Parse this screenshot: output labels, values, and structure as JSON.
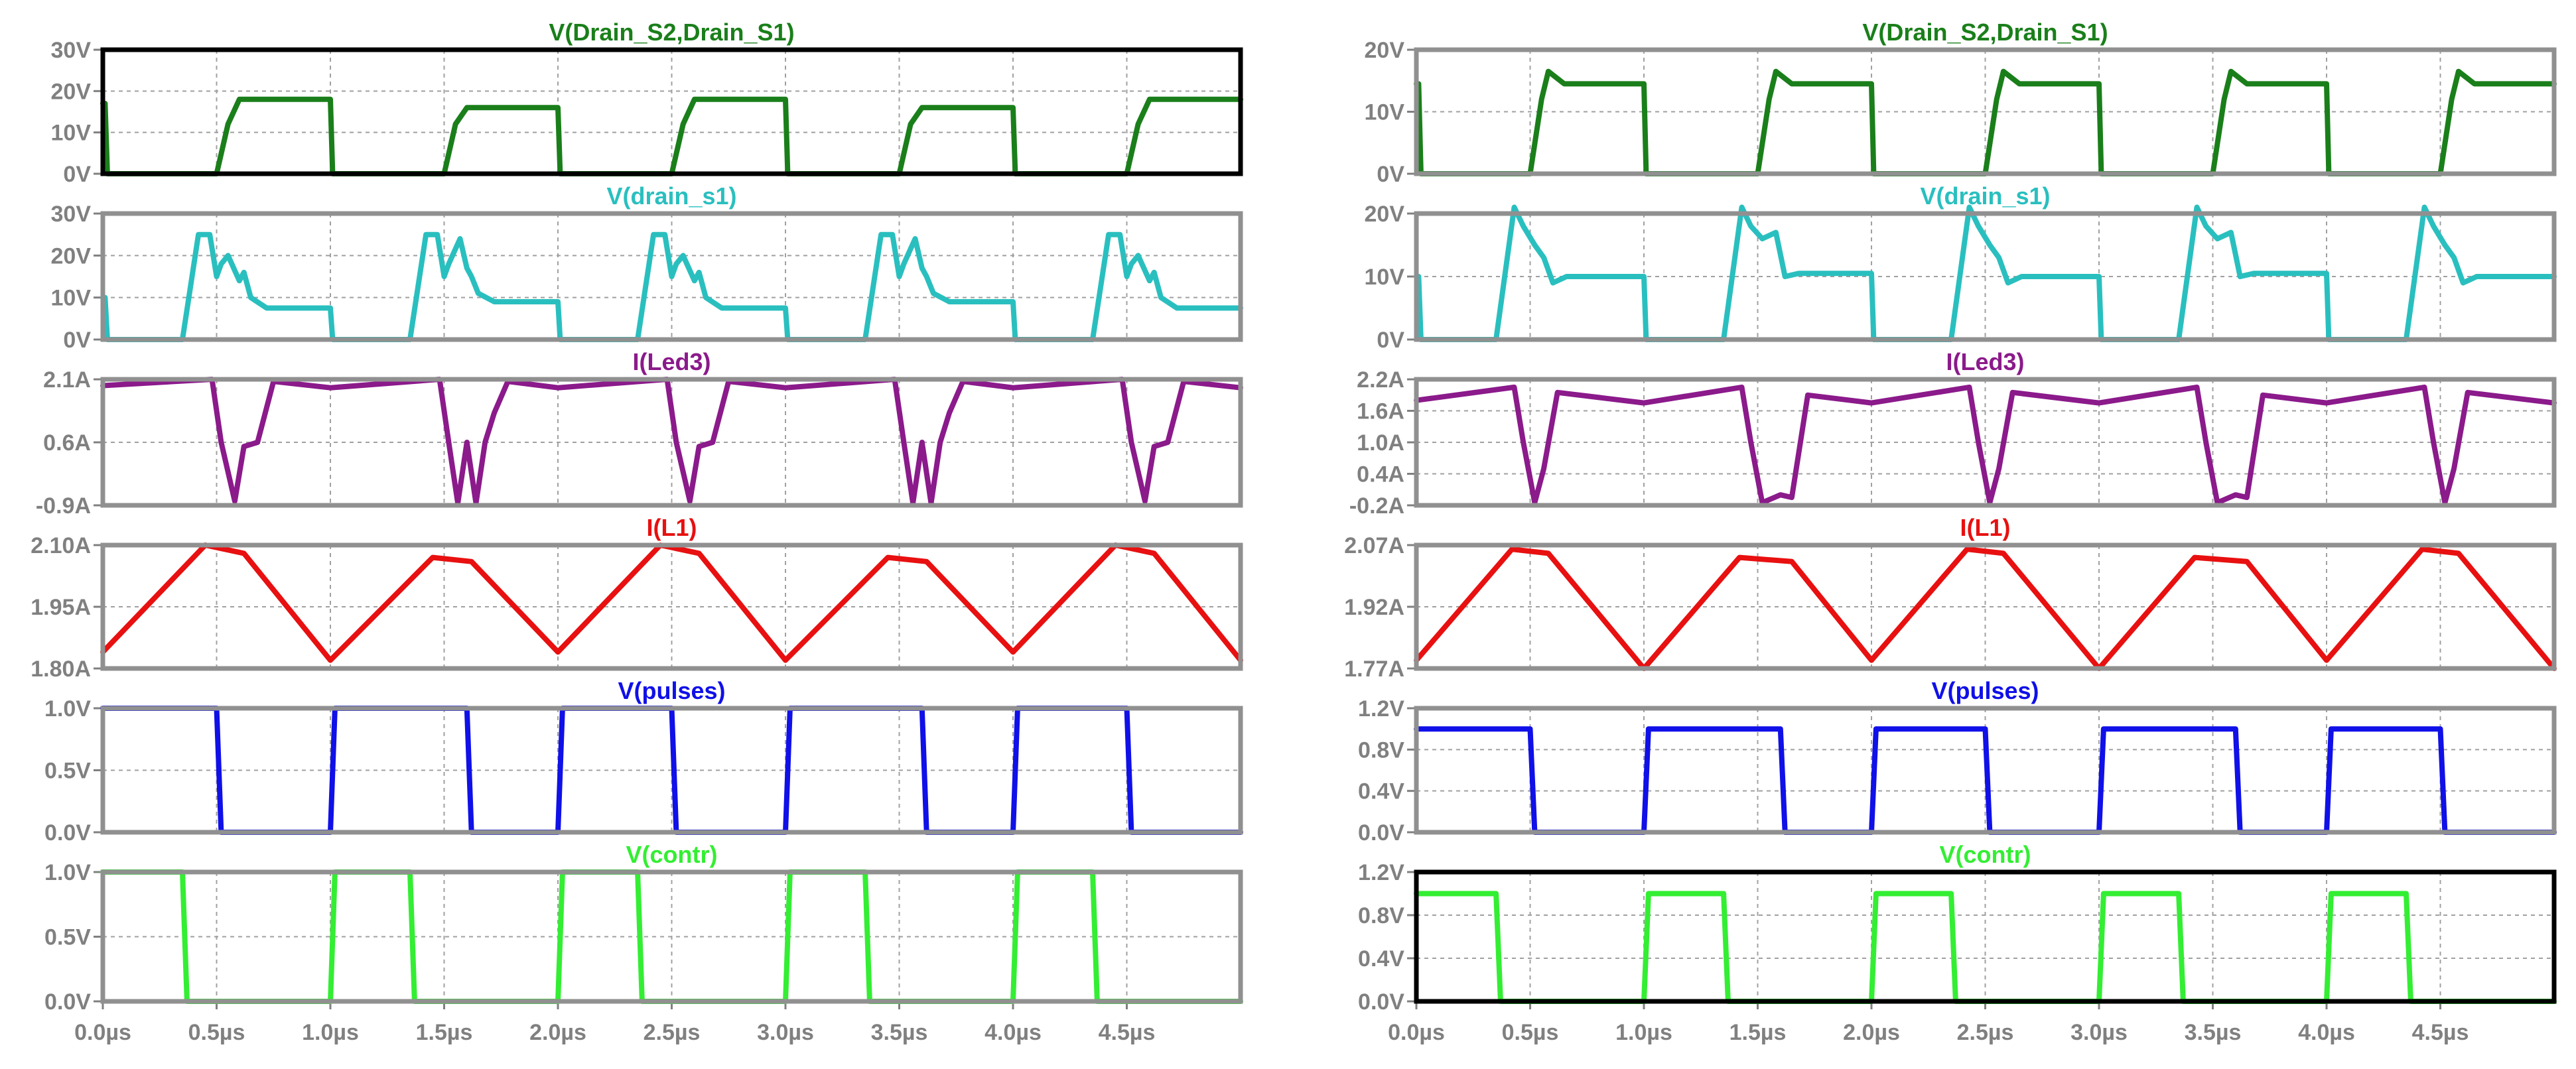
{
  "chart_data": [
    {
      "type": "line",
      "title": "V(Drain_S2,Drain_S1)",
      "color": "#1a7f1a",
      "frame": "#000000",
      "x_range": [
        0,
        5
      ],
      "ylim": [
        0,
        30
      ],
      "y_ticks": [
        "0V",
        "10V",
        "20V",
        "30V"
      ],
      "x_ticks": [],
      "series": [
        {
          "x": [
            0,
            0.01,
            0.02,
            0.5,
            0.55,
            0.6,
            1.0,
            1.01,
            1.5,
            1.55,
            1.6,
            2.0,
            2.01,
            2.5,
            2.55,
            2.6,
            3.0,
            3.01,
            3.5,
            3.55,
            3.6,
            4.0,
            4.01,
            4.5,
            4.55,
            4.6,
            5.0
          ],
          "y": [
            17,
            17,
            0,
            0,
            12,
            18,
            18,
            0,
            0,
            12,
            16,
            16,
            0,
            0,
            12,
            18,
            18,
            0,
            0,
            12,
            16,
            16,
            0,
            0,
            12,
            18,
            18
          ]
        }
      ]
    },
    {
      "type": "line",
      "title": "V(drain_s1)",
      "color": "#2abfbf",
      "frame": "#909090",
      "x_range": [
        0,
        5
      ],
      "ylim": [
        0,
        30
      ],
      "y_ticks": [
        "0V",
        "10V",
        "20V",
        "30V"
      ],
      "x_ticks": [],
      "series": [
        {
          "x": [
            0,
            0.01,
            0.02,
            0.35,
            0.42,
            0.47,
            0.5,
            0.52,
            0.55,
            0.6,
            0.62,
            0.65,
            0.72,
            1.0,
            1.01,
            1.35,
            1.42,
            1.47,
            1.5,
            1.52,
            1.57,
            1.6,
            1.62,
            1.65,
            1.72,
            2.0,
            2.01,
            2.35,
            2.42,
            2.47,
            2.5,
            2.52,
            2.55,
            2.6,
            2.62,
            2.65,
            2.72,
            3.0,
            3.01,
            3.35,
            3.42,
            3.47,
            3.5,
            3.52,
            3.57,
            3.6,
            3.62,
            3.65,
            3.72,
            4.0,
            4.01,
            4.35,
            4.42,
            4.47,
            4.5,
            4.52,
            4.55,
            4.6,
            4.62,
            4.65,
            4.72,
            5.0
          ],
          "y": [
            10,
            10,
            0,
            0,
            25,
            25,
            15,
            18,
            20,
            14,
            16,
            10,
            7.5,
            7.5,
            0,
            0,
            25,
            25,
            15,
            18,
            24,
            17,
            15,
            11,
            9,
            9,
            0,
            0,
            25,
            25,
            15,
            18,
            20,
            14,
            16,
            10,
            7.5,
            7.5,
            0,
            0,
            25,
            25,
            15,
            18,
            24,
            17,
            15,
            11,
            9,
            9,
            0,
            0,
            25,
            25,
            15,
            18,
            20,
            14,
            16,
            10,
            7.5,
            7.5
          ]
        }
      ]
    },
    {
      "type": "line",
      "title": "I(Led3)",
      "color": "#8b1a8b",
      "frame": "#909090",
      "x_range": [
        0,
        5
      ],
      "ylim": [
        -0.9,
        2.1
      ],
      "y_ticks": [
        "-0.9A",
        "0.6A",
        "2.1A"
      ],
      "x_ticks": [],
      "series": [
        {
          "x": [
            0,
            0.48,
            0.52,
            0.58,
            0.62,
            0.68,
            0.75,
            1.0,
            1.48,
            1.52,
            1.56,
            1.6,
            1.64,
            1.68,
            1.72,
            1.78,
            2.0,
            2.48,
            2.52,
            2.58,
            2.62,
            2.68,
            2.75,
            3.0,
            3.48,
            3.52,
            3.56,
            3.6,
            3.64,
            3.68,
            3.72,
            3.78,
            4.0,
            4.48,
            4.52,
            4.58,
            4.62,
            4.68,
            4.75,
            5.0
          ],
          "y": [
            1.95,
            2.1,
            0.6,
            -0.8,
            0.5,
            0.6,
            2.05,
            1.9,
            2.1,
            0.6,
            -0.85,
            0.6,
            -0.85,
            0.6,
            1.3,
            2.05,
            1.9,
            2.1,
            0.6,
            -0.8,
            0.5,
            0.6,
            2.05,
            1.9,
            2.1,
            0.6,
            -0.85,
            0.6,
            -0.85,
            0.6,
            1.3,
            2.05,
            1.9,
            2.1,
            0.6,
            -0.8,
            0.5,
            0.6,
            2.05,
            1.9
          ]
        }
      ]
    },
    {
      "type": "line",
      "title": "I(L1)",
      "color": "#e81010",
      "frame": "#909090",
      "x_range": [
        0,
        5
      ],
      "ylim": [
        1.8,
        2.1
      ],
      "y_ticks": [
        "1.80A",
        "1.95A",
        "2.10A"
      ],
      "x_ticks": [],
      "series": [
        {
          "x": [
            0,
            0.45,
            0.62,
            1.0,
            1.45,
            1.62,
            2.0,
            2.45,
            2.62,
            3.0,
            3.45,
            3.62,
            4.0,
            4.45,
            4.62,
            5.0
          ],
          "y": [
            1.84,
            2.1,
            2.08,
            1.82,
            2.07,
            2.06,
            1.84,
            2.1,
            2.08,
            1.82,
            2.07,
            2.06,
            1.84,
            2.1,
            2.08,
            1.82
          ]
        }
      ]
    },
    {
      "type": "line",
      "title": "V(pulses)",
      "color": "#1010e8",
      "frame": "#909090",
      "x_range": [
        0,
        5
      ],
      "ylim": [
        0,
        1.0
      ],
      "y_ticks": [
        "0.0V",
        "0.5V",
        "1.0V"
      ],
      "x_ticks": [],
      "series": [
        {
          "x": [
            0,
            0.5,
            0.52,
            1.0,
            1.02,
            1.6,
            1.62,
            2.0,
            2.02,
            2.5,
            2.52,
            3.0,
            3.02,
            3.6,
            3.62,
            4.0,
            4.02,
            4.5,
            4.52,
            5.0
          ],
          "y": [
            1,
            1,
            0,
            0,
            1,
            1,
            0,
            0,
            1,
            1,
            0,
            0,
            1,
            1,
            0,
            0,
            1,
            1,
            0,
            0
          ]
        }
      ]
    },
    {
      "type": "line",
      "title": "V(contr)",
      "color": "#33ee33",
      "frame": "#909090",
      "x_range": [
        0,
        5
      ],
      "ylim": [
        0,
        1.0
      ],
      "y_ticks": [
        "0.0V",
        "0.5V",
        "1.0V"
      ],
      "x_ticks": [
        "0.0µs",
        "0.5µs",
        "1.0µs",
        "1.5µs",
        "2.0µs",
        "2.5µs",
        "3.0µs",
        "3.5µs",
        "4.0µs",
        "4.5µs"
      ],
      "series": [
        {
          "x": [
            0,
            0.35,
            0.37,
            1.0,
            1.02,
            1.35,
            1.37,
            2.0,
            2.02,
            2.35,
            2.37,
            3.0,
            3.02,
            3.35,
            3.37,
            4.0,
            4.02,
            4.35,
            4.37,
            5.0
          ],
          "y": [
            1,
            1,
            0,
            0,
            1,
            1,
            0,
            0,
            1,
            1,
            0,
            0,
            1,
            1,
            0,
            0,
            1,
            1,
            0,
            0
          ]
        }
      ]
    },
    {
      "type": "line",
      "title": "V(Drain_S2,Drain_S1)",
      "color": "#1a7f1a",
      "frame": "#909090",
      "x_range": [
        0,
        5
      ],
      "ylim": [
        0,
        20
      ],
      "y_ticks": [
        "0V",
        "10V",
        "20V"
      ],
      "x_ticks": [],
      "series": [
        {
          "x": [
            0,
            0.01,
            0.02,
            0.5,
            0.55,
            0.58,
            0.65,
            1.0,
            1.01,
            1.5,
            1.55,
            1.58,
            1.65,
            2.0,
            2.01,
            2.5,
            2.55,
            2.58,
            2.65,
            3.0,
            3.01,
            3.5,
            3.55,
            3.58,
            3.65,
            4.0,
            4.01,
            4.5,
            4.55,
            4.58,
            4.65,
            5.0
          ],
          "y": [
            14.5,
            14.5,
            0,
            0,
            12,
            16.5,
            14.5,
            14.5,
            0,
            0,
            12,
            16.5,
            14.5,
            14.5,
            0,
            0,
            12,
            16.5,
            14.5,
            14.5,
            0,
            0,
            12,
            16.5,
            14.5,
            14.5,
            0,
            0,
            12,
            16.5,
            14.5,
            14.5
          ]
        }
      ]
    },
    {
      "type": "line",
      "title": "V(drain_s1)",
      "color": "#2abfbf",
      "frame": "#909090",
      "x_range": [
        0,
        5
      ],
      "ylim": [
        0,
        20
      ],
      "y_ticks": [
        "0V",
        "10V",
        "20V"
      ],
      "x_ticks": [],
      "series": [
        {
          "x": [
            0,
            0.01,
            0.02,
            0.35,
            0.43,
            0.47,
            0.52,
            0.56,
            0.6,
            0.66,
            1.0,
            1.01,
            1.35,
            1.43,
            1.47,
            1.52,
            1.58,
            1.62,
            1.68,
            2.0,
            2.01,
            2.35,
            2.43,
            2.47,
            2.52,
            2.56,
            2.6,
            2.66,
            3.0,
            3.01,
            3.35,
            3.43,
            3.47,
            3.52,
            3.58,
            3.62,
            3.68,
            4.0,
            4.01,
            4.35,
            4.43,
            4.47,
            4.52,
            4.56,
            4.6,
            4.66,
            5.0
          ],
          "y": [
            10,
            10,
            0,
            0,
            21,
            18,
            15,
            13,
            9,
            10,
            10,
            0,
            0,
            21,
            18,
            16,
            17,
            10,
            10.5,
            10.5,
            0,
            0,
            21,
            18,
            15,
            13,
            9,
            10,
            10,
            0,
            0,
            21,
            18,
            16,
            17,
            10,
            10.5,
            10.5,
            0,
            0,
            21,
            18,
            15,
            13,
            9,
            10,
            10
          ]
        }
      ]
    },
    {
      "type": "line",
      "title": "I(Led3)",
      "color": "#8b1a8b",
      "frame": "#909090",
      "x_range": [
        0,
        5
      ],
      "ylim": [
        -0.2,
        2.2
      ],
      "y_ticks": [
        "-0.2A",
        "0.4A",
        "1.0A",
        "1.6A",
        "2.2A"
      ],
      "x_ticks": [],
      "series": [
        {
          "x": [
            0,
            0.43,
            0.47,
            0.52,
            0.56,
            0.62,
            1.0,
            1.43,
            1.47,
            1.52,
            1.6,
            1.65,
            1.72,
            2.0,
            2.43,
            2.47,
            2.52,
            2.56,
            2.62,
            3.0,
            3.43,
            3.47,
            3.52,
            3.6,
            3.65,
            3.72,
            4.0,
            4.43,
            4.47,
            4.52,
            4.56,
            4.62,
            5.0
          ],
          "y": [
            1.8,
            2.05,
            1.0,
            -0.15,
            0.5,
            1.95,
            1.75,
            2.05,
            1.0,
            -0.15,
            0.0,
            -0.05,
            1.9,
            1.75,
            2.05,
            1.0,
            -0.15,
            0.5,
            1.95,
            1.75,
            2.05,
            1.0,
            -0.15,
            0.0,
            -0.05,
            1.9,
            1.75,
            2.05,
            1.0,
            -0.15,
            0.5,
            1.95,
            1.75
          ]
        }
      ]
    },
    {
      "type": "line",
      "title": "I(L1)",
      "color": "#e81010",
      "frame": "#909090",
      "x_range": [
        0,
        5
      ],
      "ylim": [
        1.77,
        2.07
      ],
      "y_ticks": [
        "1.77A",
        "1.92A",
        "2.07A"
      ],
      "x_ticks": [],
      "series": [
        {
          "x": [
            0,
            0.42,
            0.58,
            1.0,
            1.42,
            1.65,
            2.0,
            2.42,
            2.58,
            3.0,
            3.42,
            3.65,
            4.0,
            4.42,
            4.58,
            5.0
          ],
          "y": [
            1.79,
            2.06,
            2.05,
            1.77,
            2.04,
            2.03,
            1.79,
            2.06,
            2.05,
            1.77,
            2.04,
            2.03,
            1.79,
            2.06,
            2.05,
            1.77
          ]
        }
      ]
    },
    {
      "type": "line",
      "title": "V(pulses)",
      "color": "#1010e8",
      "frame": "#909090",
      "x_range": [
        0,
        5
      ],
      "ylim": [
        0,
        1.2
      ],
      "y_ticks": [
        "0.0V",
        "0.4V",
        "0.8V",
        "1.2V"
      ],
      "x_ticks": [],
      "series": [
        {
          "x": [
            0,
            0.5,
            0.52,
            1.0,
            1.02,
            1.6,
            1.62,
            2.0,
            2.02,
            2.5,
            2.52,
            3.0,
            3.02,
            3.6,
            3.62,
            4.0,
            4.02,
            4.5,
            4.52,
            5.0
          ],
          "y": [
            1,
            1,
            0,
            0,
            1,
            1,
            0,
            0,
            1,
            1,
            0,
            0,
            1,
            1,
            0,
            0,
            1,
            1,
            0,
            0
          ]
        }
      ]
    },
    {
      "type": "line",
      "title": "V(contr)",
      "color": "#33ee33",
      "frame": "#000000",
      "x_range": [
        0,
        5
      ],
      "ylim": [
        0,
        1.2
      ],
      "y_ticks": [
        "0.0V",
        "0.4V",
        "0.8V",
        "1.2V"
      ],
      "x_ticks": [
        "0.0µs",
        "0.5µs",
        "1.0µs",
        "1.5µs",
        "2.0µs",
        "2.5µs",
        "3.0µs",
        "3.5µs",
        "4.0µs",
        "4.5µs"
      ],
      "series": [
        {
          "x": [
            0,
            0.35,
            0.37,
            1.0,
            1.02,
            1.35,
            1.37,
            2.0,
            2.02,
            2.35,
            2.37,
            3.0,
            3.02,
            3.35,
            3.37,
            4.0,
            4.02,
            4.35,
            4.37,
            5.0
          ],
          "y": [
            1,
            1,
            0,
            0,
            1,
            1,
            0,
            0,
            1,
            1,
            0,
            0,
            1,
            1,
            0,
            0,
            1,
            1,
            0,
            0
          ]
        }
      ]
    }
  ]
}
